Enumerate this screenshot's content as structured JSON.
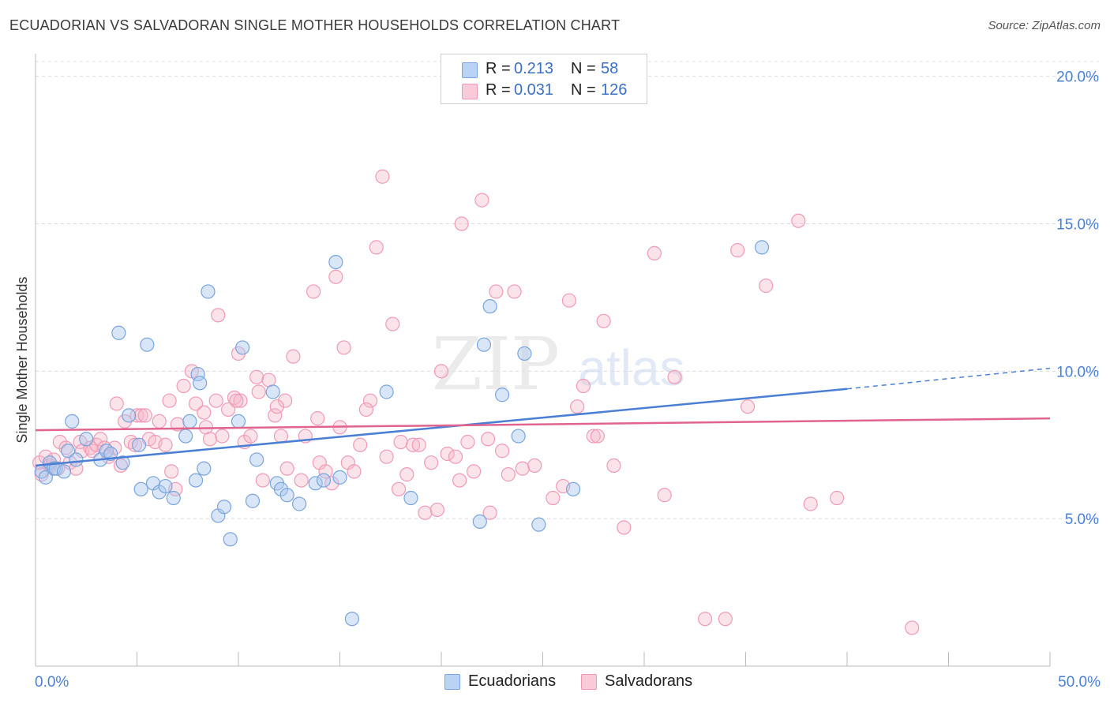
{
  "title": "ECUADORIAN VS SALVADORAN SINGLE MOTHER HOUSEHOLDS CORRELATION CHART",
  "source": "Source: ZipAtlas.com",
  "watermark": {
    "zip": "ZIP",
    "atlas": "atlas"
  },
  "legend": {
    "r_label": "R =",
    "n_label": "N =",
    "rows": [
      {
        "series": "Ecuadorians",
        "r": "0.213",
        "n": "58",
        "color": "#a9c8f0"
      },
      {
        "series": "Salvadorans",
        "r": "0.031",
        "n": "126",
        "color": "#f6b8cb"
      }
    ]
  },
  "bottom_legend": [
    {
      "label": "Ecuadorians",
      "color": "#a9c8f0"
    },
    {
      "label": "Salvadorans",
      "color": "#f6b8cb"
    }
  ],
  "chart_data": {
    "type": "scatter",
    "title": "ECUADORIAN VS SALVADORAN SINGLE MOTHER HOUSEHOLDS CORRELATION CHART",
    "xlabel": "",
    "ylabel": "Single Mother Households",
    "xlim": [
      0,
      50
    ],
    "ylim": [
      0,
      20.5
    ],
    "x_tick_labels": [
      "0.0%",
      "50.0%"
    ],
    "y_ticks": [
      5,
      10,
      15,
      20
    ],
    "y_tick_labels": [
      "5.0%",
      "10.0%",
      "15.0%",
      "20.0%"
    ],
    "grid": true,
    "legend_position": "top-center",
    "colors": {
      "Ecuadorians": "#4a7fd4",
      "Salvadorans": "#e0648e"
    },
    "series": [
      {
        "name": "Ecuadorians",
        "trend": {
          "x": [
            0,
            40,
            50
          ],
          "y": [
            6.8,
            9.4,
            10.1
          ],
          "solid_until": 40
        },
        "points": [
          [
            0.3,
            6.6
          ],
          [
            0.5,
            6.4
          ],
          [
            0.7,
            6.9
          ],
          [
            0.9,
            6.7
          ],
          [
            1.0,
            6.7
          ],
          [
            1.4,
            6.6
          ],
          [
            1.6,
            7.3
          ],
          [
            1.8,
            8.3
          ],
          [
            2.0,
            7.0
          ],
          [
            2.5,
            7.7
          ],
          [
            3.2,
            7.0
          ],
          [
            3.5,
            7.3
          ],
          [
            3.7,
            7.2
          ],
          [
            4.1,
            11.3
          ],
          [
            4.3,
            6.9
          ],
          [
            4.6,
            8.5
          ],
          [
            5.1,
            7.5
          ],
          [
            5.2,
            6.0
          ],
          [
            5.5,
            10.9
          ],
          [
            5.8,
            6.2
          ],
          [
            6.1,
            5.9
          ],
          [
            6.4,
            6.1
          ],
          [
            6.8,
            5.7
          ],
          [
            7.4,
            7.8
          ],
          [
            7.6,
            8.3
          ],
          [
            8.0,
            9.9
          ],
          [
            8.1,
            9.6
          ],
          [
            8.3,
            6.7
          ],
          [
            8.5,
            12.7
          ],
          [
            7.9,
            6.3
          ],
          [
            9.0,
            5.1
          ],
          [
            9.3,
            5.4
          ],
          [
            9.6,
            4.3
          ],
          [
            10.0,
            8.3
          ],
          [
            10.2,
            10.8
          ],
          [
            10.7,
            5.6
          ],
          [
            10.9,
            7.0
          ],
          [
            11.7,
            9.3
          ],
          [
            11.9,
            6.2
          ],
          [
            12.1,
            6.0
          ],
          [
            12.4,
            5.8
          ],
          [
            13.0,
            5.5
          ],
          [
            13.8,
            6.2
          ],
          [
            14.2,
            6.3
          ],
          [
            14.8,
            13.7
          ],
          [
            15.0,
            6.4
          ],
          [
            15.6,
            1.6
          ],
          [
            17.3,
            9.3
          ],
          [
            18.5,
            5.7
          ],
          [
            21.9,
            4.9
          ],
          [
            22.1,
            10.9
          ],
          [
            22.4,
            12.2
          ],
          [
            23.0,
            9.2
          ],
          [
            23.8,
            7.8
          ],
          [
            24.1,
            10.6
          ],
          [
            24.8,
            4.8
          ],
          [
            26.5,
            6.0
          ],
          [
            35.8,
            14.2
          ]
        ]
      },
      {
        "name": "Salvadorans",
        "trend": {
          "x": [
            0,
            50
          ],
          "y": [
            8.0,
            8.4
          ]
        },
        "points": [
          [
            0.2,
            6.9
          ],
          [
            0.3,
            6.5
          ],
          [
            0.5,
            7.1
          ],
          [
            0.7,
            6.8
          ],
          [
            0.9,
            7.0
          ],
          [
            1.1,
            6.7
          ],
          [
            1.2,
            7.6
          ],
          [
            1.5,
            7.4
          ],
          [
            1.7,
            6.9
          ],
          [
            2.0,
            6.7
          ],
          [
            2.2,
            7.6
          ],
          [
            2.3,
            7.3
          ],
          [
            2.7,
            7.4
          ],
          [
            2.8,
            7.3
          ],
          [
            3.0,
            7.5
          ],
          [
            3.2,
            7.7
          ],
          [
            3.4,
            7.4
          ],
          [
            3.6,
            7.1
          ],
          [
            3.9,
            7.4
          ],
          [
            4.0,
            8.9
          ],
          [
            4.2,
            6.8
          ],
          [
            4.4,
            8.3
          ],
          [
            4.7,
            7.6
          ],
          [
            4.9,
            7.5
          ],
          [
            5.0,
            8.5
          ],
          [
            5.2,
            8.5
          ],
          [
            5.4,
            8.5
          ],
          [
            5.6,
            7.7
          ],
          [
            5.9,
            7.6
          ],
          [
            6.1,
            8.3
          ],
          [
            6.4,
            7.5
          ],
          [
            6.7,
            6.6
          ],
          [
            6.9,
            6.0
          ],
          [
            7.0,
            8.2
          ],
          [
            7.3,
            9.5
          ],
          [
            7.7,
            10.0
          ],
          [
            7.9,
            8.9
          ],
          [
            8.3,
            8.6
          ],
          [
            8.4,
            8.1
          ],
          [
            8.6,
            7.7
          ],
          [
            8.9,
            9.0
          ],
          [
            9.0,
            11.9
          ],
          [
            9.2,
            7.8
          ],
          [
            9.5,
            8.7
          ],
          [
            9.8,
            9.1
          ],
          [
            10.0,
            10.6
          ],
          [
            10.1,
            9.0
          ],
          [
            10.3,
            7.6
          ],
          [
            10.6,
            7.8
          ],
          [
            10.9,
            9.8
          ],
          [
            11.0,
            9.3
          ],
          [
            11.2,
            6.3
          ],
          [
            11.5,
            9.7
          ],
          [
            11.8,
            8.5
          ],
          [
            12.1,
            7.8
          ],
          [
            12.4,
            6.7
          ],
          [
            12.7,
            10.5
          ],
          [
            13.1,
            6.3
          ],
          [
            13.3,
            7.8
          ],
          [
            13.7,
            12.7
          ],
          [
            14.0,
            6.9
          ],
          [
            14.3,
            6.6
          ],
          [
            14.6,
            6.2
          ],
          [
            14.8,
            13.2
          ],
          [
            15.0,
            8.1
          ],
          [
            15.2,
            10.8
          ],
          [
            15.4,
            6.9
          ],
          [
            15.7,
            6.6
          ],
          [
            16.0,
            7.5
          ],
          [
            16.5,
            9.0
          ],
          [
            16.8,
            14.2
          ],
          [
            17.1,
            16.6
          ],
          [
            17.3,
            7.1
          ],
          [
            17.6,
            11.6
          ],
          [
            17.9,
            6.0
          ],
          [
            18.3,
            6.5
          ],
          [
            18.6,
            7.5
          ],
          [
            18.9,
            7.5
          ],
          [
            19.2,
            5.2
          ],
          [
            19.5,
            6.9
          ],
          [
            19.8,
            5.3
          ],
          [
            20.0,
            10.0
          ],
          [
            20.3,
            7.2
          ],
          [
            20.7,
            7.1
          ],
          [
            21.0,
            15.0
          ],
          [
            21.3,
            7.6
          ],
          [
            21.6,
            6.6
          ],
          [
            22.0,
            15.8
          ],
          [
            22.3,
            7.7
          ],
          [
            22.7,
            12.7
          ],
          [
            23.0,
            7.3
          ],
          [
            23.3,
            6.5
          ],
          [
            23.6,
            12.7
          ],
          [
            24.0,
            6.7
          ],
          [
            26.0,
            6.1
          ],
          [
            26.3,
            12.4
          ],
          [
            26.7,
            8.8
          ],
          [
            27.0,
            9.5
          ],
          [
            27.5,
            7.8
          ],
          [
            28.0,
            11.7
          ],
          [
            28.5,
            6.8
          ],
          [
            29.0,
            4.7
          ],
          [
            30.5,
            14.0
          ],
          [
            31.0,
            5.8
          ],
          [
            31.5,
            9.8
          ],
          [
            33.0,
            1.6
          ],
          [
            34.0,
            1.6
          ],
          [
            34.6,
            14.1
          ],
          [
            35.1,
            8.8
          ],
          [
            36.0,
            12.9
          ],
          [
            37.6,
            15.1
          ],
          [
            38.2,
            5.5
          ],
          [
            39.5,
            5.7
          ],
          [
            43.2,
            1.3
          ],
          [
            24.6,
            6.8
          ],
          [
            16.3,
            8.7
          ],
          [
            9.9,
            9.0
          ],
          [
            20.9,
            6.3
          ],
          [
            12.3,
            9.0
          ],
          [
            25.5,
            5.7
          ],
          [
            6.6,
            9.0
          ],
          [
            22.4,
            5.2
          ],
          [
            18.0,
            7.6
          ],
          [
            13.9,
            8.4
          ],
          [
            27.7,
            7.8
          ],
          [
            11.9,
            8.8
          ]
        ]
      }
    ]
  }
}
